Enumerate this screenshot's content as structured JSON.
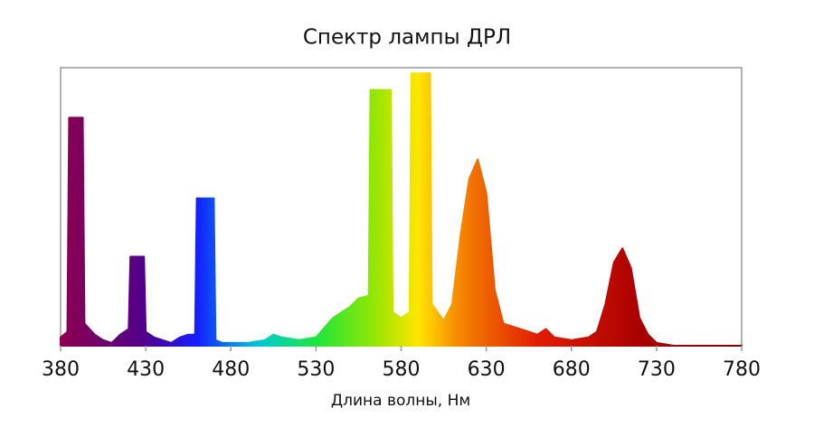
{
  "chart_data": {
    "type": "area",
    "title": "Спектр лампы ДРЛ",
    "x_label": "Длина волны, Нм",
    "color": "spectrum",
    "x": [
      380,
      384,
      385,
      393,
      394,
      400,
      405,
      410,
      415,
      420,
      421,
      429,
      430,
      435,
      440,
      445,
      450,
      455,
      459,
      460,
      470,
      471,
      475,
      490,
      500,
      505,
      510,
      520,
      530,
      540,
      550,
      555,
      561,
      562,
      574,
      575,
      580,
      585,
      586,
      597,
      598,
      605,
      610,
      615,
      620,
      625,
      630,
      635,
      640,
      650,
      660,
      665,
      670,
      680,
      690,
      695,
      700,
      705,
      710,
      715,
      720,
      725,
      730,
      740,
      780
    ],
    "y": [
      3,
      5,
      82,
      82,
      8,
      4,
      2,
      1,
      4,
      6,
      32,
      32,
      5,
      3,
      2,
      1,
      3,
      4,
      4,
      53,
      53,
      2,
      1,
      1,
      2,
      4,
      3,
      2,
      3,
      10,
      14,
      17,
      18,
      92,
      92,
      12,
      10,
      12,
      98,
      98,
      15,
      9,
      15,
      40,
      60,
      67,
      55,
      20,
      8,
      6,
      4,
      6,
      3,
      2,
      3,
      5,
      15,
      30,
      35,
      28,
      10,
      4,
      1,
      0,
      0
    ],
    "xlim": [
      380,
      780
    ],
    "ylim": [
      0,
      100
    ],
    "xticks": [
      380,
      430,
      480,
      530,
      580,
      630,
      680,
      730,
      780
    ]
  }
}
